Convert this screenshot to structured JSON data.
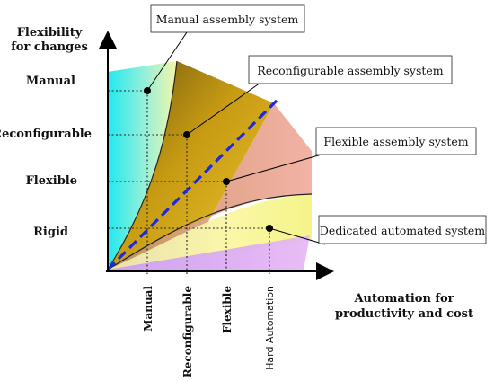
{
  "diagram": {
    "y_axis_title": [
      "Flexibility",
      "for changes"
    ],
    "x_axis_title": [
      "Automation for",
      "productivity and cost"
    ],
    "y_levels": [
      "Manual",
      "Reconfigurable",
      "Flexible",
      "Rigid"
    ],
    "x_levels": [
      "Manual",
      "Reconfigurable",
      "Flexible",
      "Hard Automation"
    ],
    "systems": [
      "Manual assembly system",
      "Reconfigurable assembly system",
      "Flexible assembly system",
      "Dedicated automated system"
    ],
    "colors": {
      "manual_zone": "#33e6e6",
      "reconfigurable_zone": "#c79a10",
      "flexible_zone": "#e8a88e",
      "rigid_zone": "#d9a3f0",
      "diagonal": "#1a2bdc",
      "guides": "#222222"
    },
    "guide_lines": "dotted",
    "diagonal_style": "dashed"
  }
}
